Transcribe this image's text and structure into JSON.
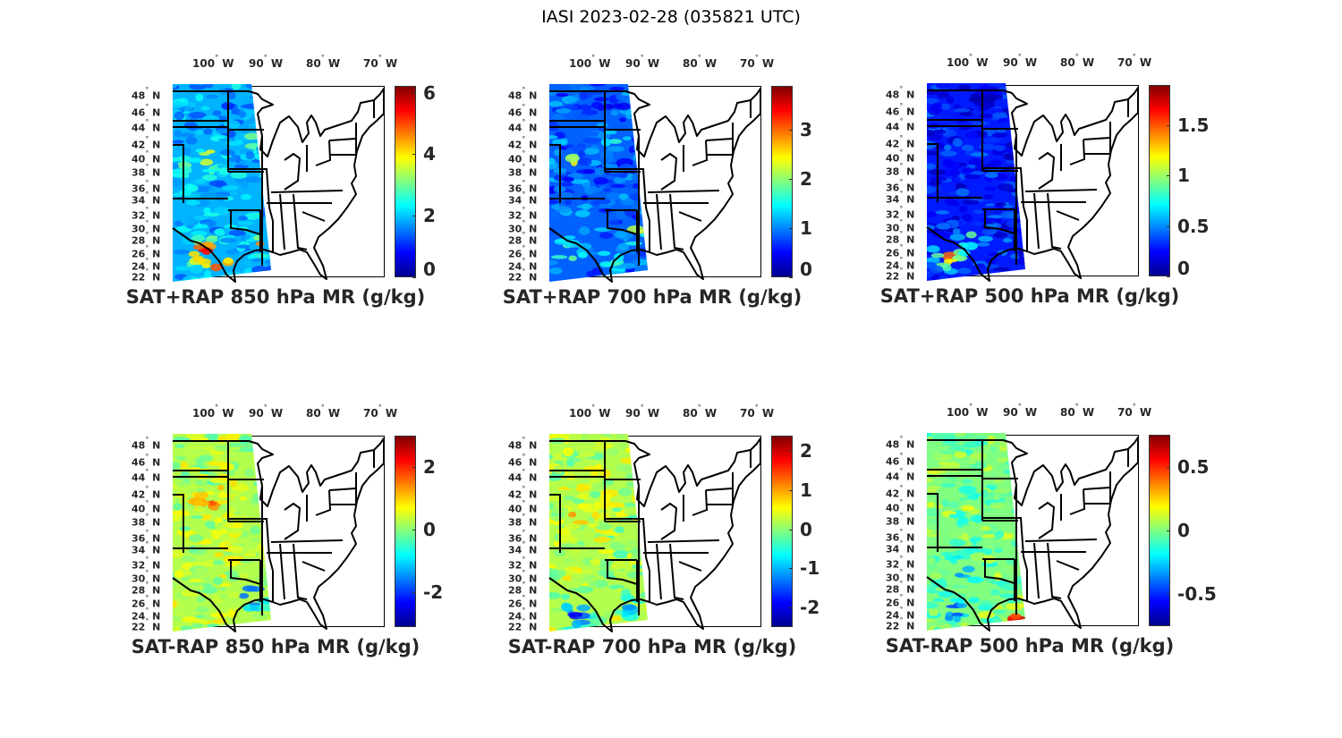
{
  "figure_title": "IASI 2023-02-28 (035821 UTC)",
  "lat_labels": [
    "48",
    "46",
    "44",
    "42",
    "40",
    "38",
    "36",
    "34",
    "32",
    "30",
    "28",
    "26",
    "24",
    "22"
  ],
  "lat_suffix": "N",
  "lon_labels": [
    "100",
    "90",
    "80",
    "70"
  ],
  "lon_suffix": "W",
  "colormap": "jet",
  "colormap_colors": [
    "#00008f",
    "#0000ff",
    "#0080ff",
    "#00ffff",
    "#80ff80",
    "#ffff00",
    "#ff8000",
    "#ff0000",
    "#800000"
  ],
  "panels": [
    {
      "title": "SAT+RAP 850 hPa MR (g/kg)",
      "clim": [
        0,
        6.2
      ],
      "ticks": [
        "0",
        "2",
        "4",
        "6"
      ],
      "tick_values": [
        0,
        2,
        4,
        6
      ],
      "mean_level": 0.3
    },
    {
      "title": "SAT+RAP 700 hPa MR (g/kg)",
      "clim": [
        0,
        3.9
      ],
      "ticks": [
        "0",
        "1",
        "2",
        "3"
      ],
      "tick_values": [
        0,
        1,
        2,
        3
      ],
      "mean_level": 0.22
    },
    {
      "title": "SAT+RAP 500 hPa MR (g/kg)",
      "clim": [
        0,
        1.9
      ],
      "ticks": [
        "0",
        "0.5",
        "1",
        "1.5"
      ],
      "tick_values": [
        0,
        0.5,
        1,
        1.5
      ],
      "mean_level": 0.15
    },
    {
      "title": "SAT-RAP 850 hPa MR (g/kg)",
      "clim": [
        -3.1,
        3.0
      ],
      "ticks": [
        "-2",
        "0",
        "2"
      ],
      "tick_values": [
        -2,
        0,
        2
      ],
      "mean_level": 0.55
    },
    {
      "title": "SAT-RAP 700 hPa MR (g/kg)",
      "clim": [
        -2.5,
        2.4
      ],
      "ticks": [
        "-2",
        "-1",
        "0",
        "1",
        "2"
      ],
      "tick_values": [
        -2,
        -1,
        0,
        1,
        2
      ],
      "mean_level": 0.55
    },
    {
      "title": "SAT-RAP 500 hPa MR (g/kg)",
      "clim": [
        -0.75,
        0.75
      ],
      "ticks": [
        "-0.5",
        "0",
        "0.5"
      ],
      "tick_values": [
        -0.5,
        0,
        0.5
      ],
      "mean_level": 0.5
    }
  ]
}
